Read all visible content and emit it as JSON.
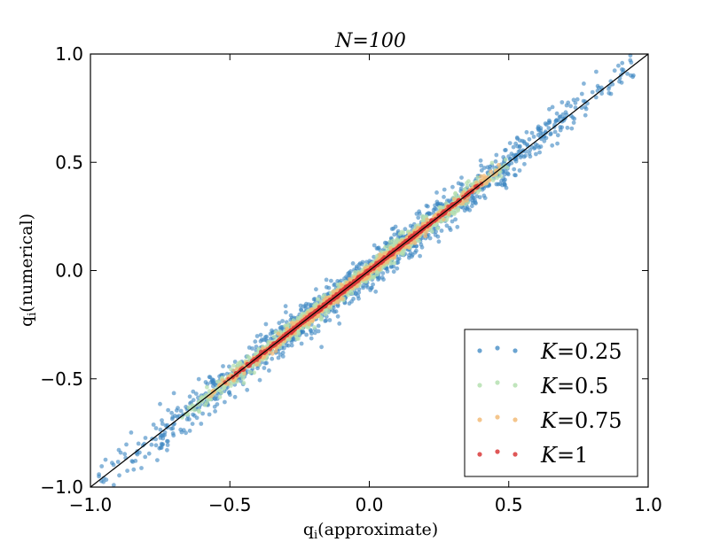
{
  "chart_data": {
    "type": "scatter",
    "title": "N=100",
    "xlabel": "q_i (approximate)",
    "ylabel": "q_i (numerical)",
    "xlim": [
      -1.0,
      1.0
    ],
    "ylim": [
      -1.0,
      1.0
    ],
    "xticks": [
      -1.0,
      -0.5,
      0.0,
      0.5,
      1.0
    ],
    "yticks": [
      -1.0,
      -0.5,
      0.0,
      0.5,
      1.0
    ],
    "xtick_labels": [
      "−1.0",
      "−0.5",
      "0.0",
      "0.5",
      "1.0"
    ],
    "ytick_labels": [
      "−1.0",
      "−0.5",
      "0.0",
      "0.5",
      "1.0"
    ],
    "grid": false,
    "legend_position": "lower-right",
    "reference_line": {
      "name": "y = x",
      "points": [
        [
          -1.0,
          -1.0
        ],
        [
          1.0,
          1.0
        ]
      ],
      "color": "#000000"
    },
    "series": [
      {
        "name": "K=0.25",
        "label_var": "K",
        "label_value": "=0.25",
        "color": "#3a86c2",
        "x_range": [
          -0.97,
          0.95
        ],
        "spread": 0.045,
        "count": 1400
      },
      {
        "name": "K=0.5",
        "label_var": "K",
        "label_value": "=0.5",
        "color": "#b5e0b0",
        "x_range": [
          -0.68,
          0.52
        ],
        "spread": 0.022,
        "count": 1000
      },
      {
        "name": "K=0.75",
        "label_var": "K",
        "label_value": "=0.75",
        "color": "#f2bb78",
        "x_range": [
          -0.58,
          0.47
        ],
        "spread": 0.012,
        "count": 900
      },
      {
        "name": "K=1",
        "label_var": "K",
        "label_value": "=1",
        "color": "#d93a3a",
        "x_range": [
          -0.52,
          0.42
        ],
        "spread": 0.004,
        "count": 700
      }
    ]
  }
}
